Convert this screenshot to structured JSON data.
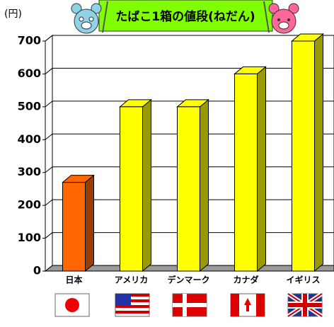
{
  "chart_data": {
    "type": "bar3d",
    "title": "たばこ1箱の値段(ねだん)",
    "y_label": "(円)",
    "categories": [
      "日本",
      "アメリカ",
      "デンマーク",
      "カナダ",
      "イギリス"
    ],
    "values": [
      270,
      500,
      500,
      600,
      700
    ],
    "colors": [
      "#ff6600",
      "#ffff00",
      "#ffff00",
      "#ffff00",
      "#ffff00"
    ],
    "ylim": [
      0,
      700
    ],
    "yticks": [
      0,
      100,
      200,
      300,
      400,
      500,
      600,
      700
    ],
    "grid": true
  }
}
